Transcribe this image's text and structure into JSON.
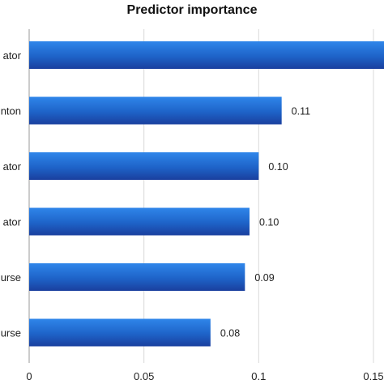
{
  "chart_data": {
    "type": "bar",
    "orientation": "horizontal",
    "title": "Predictor importance",
    "categories": [
      "ator",
      "nton",
      "ator",
      "ator",
      "urse",
      "urse"
    ],
    "values": [
      0.155,
      0.11,
      0.1,
      0.096,
      0.094,
      0.079
    ],
    "data_labels": [
      "",
      "0.11",
      "0.10",
      "0.10",
      "0.09",
      "0.08"
    ],
    "xlim": [
      0,
      0.15
    ],
    "xticks": [
      0,
      0.05,
      0.1,
      0.15
    ],
    "xtick_labels": [
      "0",
      "0.05",
      "0.1",
      "0.15"
    ],
    "grid": true,
    "bar_color": "#1f6fd1",
    "bar_color_dark": "#1a3f9e"
  }
}
